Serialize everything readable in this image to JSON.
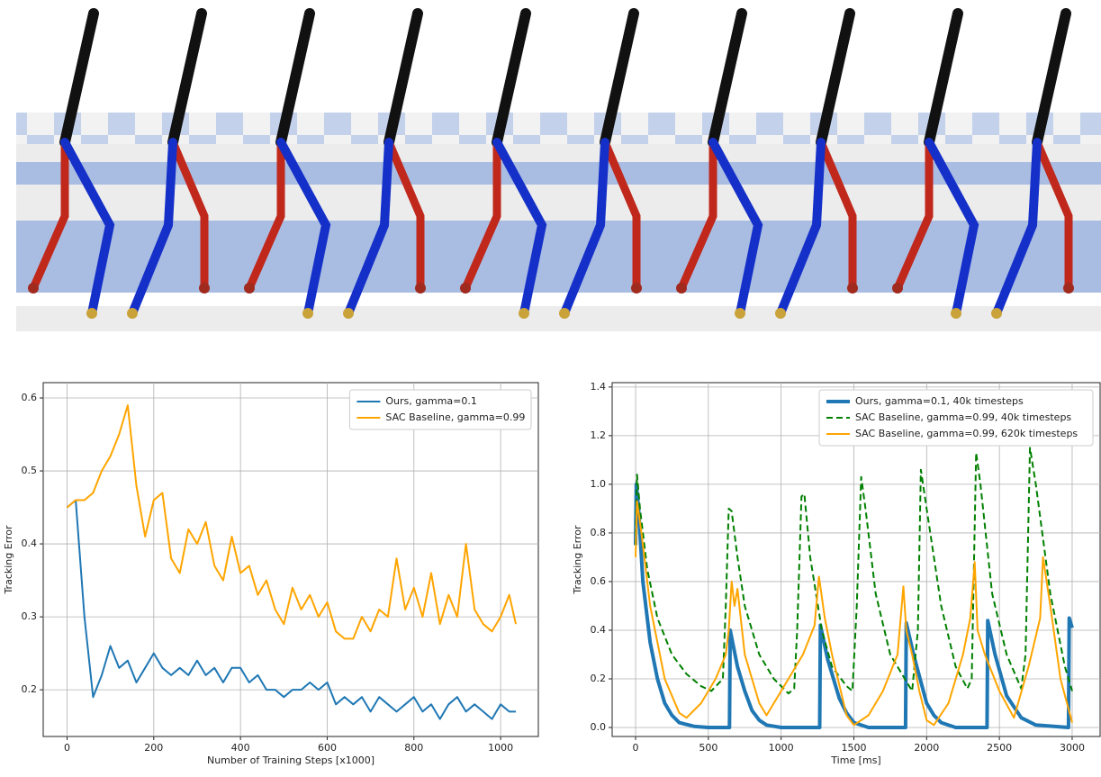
{
  "chart_data": [
    {
      "type": "line",
      "xlabel": "Number of Training Steps [x1000]",
      "ylabel": "Tracking Error",
      "x": [
        0,
        20,
        40,
        60,
        80,
        100,
        120,
        140,
        160,
        180,
        200,
        220,
        240,
        260,
        280,
        300,
        320,
        340,
        360,
        380,
        400,
        420,
        440,
        460,
        480,
        500,
        520,
        540,
        560,
        580,
        600,
        620,
        640,
        660,
        680,
        700,
        720,
        740,
        760,
        780,
        800,
        820,
        840,
        860,
        880,
        900,
        920,
        940,
        960,
        980,
        1000,
        1020,
        1035
      ],
      "series": [
        {
          "name": "Ours, gamma=0.1",
          "color": "#1f77b4",
          "linewidth": 2,
          "values": [
            0.45,
            0.46,
            0.3,
            0.19,
            0.22,
            0.26,
            0.23,
            0.24,
            0.21,
            0.23,
            0.25,
            0.23,
            0.22,
            0.23,
            0.22,
            0.24,
            0.22,
            0.23,
            0.21,
            0.23,
            0.23,
            0.21,
            0.22,
            0.2,
            0.2,
            0.19,
            0.2,
            0.2,
            0.21,
            0.2,
            0.21,
            0.18,
            0.19,
            0.18,
            0.19,
            0.17,
            0.19,
            0.18,
            0.17,
            0.18,
            0.19,
            0.17,
            0.18,
            0.16,
            0.18,
            0.19,
            0.17,
            0.18,
            0.17,
            0.16,
            0.18,
            0.17,
            0.17
          ]
        },
        {
          "name": "SAC Baseline, gamma=0.99",
          "color": "#ffa500",
          "linewidth": 2,
          "values": [
            0.45,
            0.46,
            0.46,
            0.47,
            0.5,
            0.52,
            0.55,
            0.59,
            0.48,
            0.41,
            0.46,
            0.47,
            0.38,
            0.36,
            0.42,
            0.4,
            0.43,
            0.37,
            0.35,
            0.41,
            0.36,
            0.37,
            0.33,
            0.35,
            0.31,
            0.29,
            0.34,
            0.31,
            0.33,
            0.3,
            0.32,
            0.28,
            0.27,
            0.27,
            0.3,
            0.28,
            0.31,
            0.3,
            0.38,
            0.31,
            0.34,
            0.3,
            0.36,
            0.29,
            0.33,
            0.3,
            0.4,
            0.31,
            0.29,
            0.28,
            0.3,
            0.33,
            0.29
          ]
        }
      ],
      "xlim": [
        -55,
        1087
      ],
      "ylim": [
        0.136,
        0.621
      ],
      "xticks": [
        0,
        200,
        400,
        600,
        800,
        1000
      ],
      "yticks": [
        0.2,
        0.3,
        0.4,
        0.5,
        0.6
      ],
      "grid": true,
      "legend": "upper right"
    },
    {
      "type": "line",
      "xlabel": "Time [ms]",
      "ylabel": "Tracking Error",
      "series": [
        {
          "name": "Ours, gamma=0.1, 40k timesteps",
          "color": "#1f77b4",
          "linewidth": 4,
          "x": [
            0,
            5,
            20,
            50,
            100,
            150,
            200,
            250,
            300,
            400,
            500,
            645,
            650,
            700,
            750,
            800,
            850,
            900,
            1000,
            1265,
            1270,
            1320,
            1400,
            1450,
            1500,
            1600,
            1855,
            1860,
            1910,
            2000,
            2050,
            2100,
            2200,
            2415,
            2420,
            2470,
            2550,
            2650,
            2750,
            2975,
            2980,
            3000
          ],
          "values": [
            0.75,
            1.0,
            0.9,
            0.6,
            0.35,
            0.2,
            0.1,
            0.05,
            0.02,
            0.005,
            0,
            0,
            0.4,
            0.25,
            0.15,
            0.07,
            0.03,
            0.01,
            0,
            0,
            0.42,
            0.28,
            0.12,
            0.06,
            0.02,
            0,
            0,
            0.43,
            0.3,
            0.1,
            0.05,
            0.02,
            0,
            0,
            0.44,
            0.3,
            0.13,
            0.04,
            0.01,
            0,
            0.45,
            0.41
          ]
        },
        {
          "name": "SAC Baseline, gamma=0.99, 40k timesteps",
          "color": "#008000",
          "linewidth": 2,
          "linestyle": "dashed",
          "x": [
            0,
            10,
            30,
            80,
            150,
            250,
            350,
            450,
            520,
            600,
            620,
            640,
            660,
            700,
            750,
            850,
            950,
            1050,
            1090,
            1110,
            1140,
            1160,
            1200,
            1280,
            1350,
            1450,
            1490,
            1520,
            1550,
            1580,
            1650,
            1750,
            1850,
            1900,
            1940,
            1960,
            2000,
            2100,
            2200,
            2280,
            2310,
            2340,
            2370,
            2450,
            2550,
            2650,
            2680,
            2710,
            2750,
            2850,
            2950,
            3000
          ],
          "values": [
            0.75,
            1.04,
            0.9,
            0.65,
            0.45,
            0.3,
            0.22,
            0.17,
            0.15,
            0.2,
            0.5,
            0.9,
            0.89,
            0.7,
            0.5,
            0.3,
            0.2,
            0.14,
            0.16,
            0.4,
            0.95,
            0.96,
            0.7,
            0.4,
            0.25,
            0.17,
            0.15,
            0.5,
            1.03,
            0.9,
            0.55,
            0.3,
            0.2,
            0.15,
            0.4,
            1.06,
            0.9,
            0.5,
            0.25,
            0.16,
            0.2,
            1.13,
            1.0,
            0.55,
            0.3,
            0.16,
            0.3,
            1.15,
            1.0,
            0.55,
            0.25,
            0.15
          ]
        },
        {
          "name": "SAC Baseline, gamma=0.99, 620k timesteps",
          "color": "#ffa500",
          "linewidth": 2,
          "x": [
            0,
            10,
            40,
            100,
            200,
            300,
            350,
            450,
            550,
            620,
            640,
            660,
            680,
            700,
            750,
            850,
            900,
            950,
            1050,
            1150,
            1230,
            1260,
            1300,
            1350,
            1450,
            1500,
            1600,
            1700,
            1800,
            1840,
            1860,
            1900,
            1950,
            2000,
            2050,
            2150,
            2250,
            2300,
            2330,
            2350,
            2400,
            2500,
            2600,
            2700,
            2780,
            2800,
            2850,
            2920,
            3000
          ],
          "values": [
            0.7,
            0.93,
            0.8,
            0.5,
            0.2,
            0.06,
            0.04,
            0.1,
            0.2,
            0.3,
            0.4,
            0.6,
            0.5,
            0.57,
            0.3,
            0.1,
            0.05,
            0.1,
            0.2,
            0.3,
            0.42,
            0.62,
            0.45,
            0.3,
            0.05,
            0.01,
            0.05,
            0.15,
            0.3,
            0.58,
            0.4,
            0.3,
            0.15,
            0.03,
            0.01,
            0.1,
            0.3,
            0.45,
            0.68,
            0.4,
            0.3,
            0.15,
            0.04,
            0.25,
            0.45,
            0.7,
            0.5,
            0.2,
            0.02
          ]
        }
      ],
      "xlim": [
        -161,
        3192
      ],
      "ylim": [
        -0.037,
        1.418
      ],
      "xticks": [
        0,
        500,
        1000,
        1500,
        2000,
        2500,
        3000
      ],
      "yticks": [
        {
          "value": 0,
          "label": "0.0"
        },
        0.2,
        0.4,
        0.6,
        0.8,
        {
          "value": 1,
          "label": "1.0"
        },
        1.2,
        1.4
      ],
      "grid": true,
      "legend": "upper right"
    }
  ]
}
